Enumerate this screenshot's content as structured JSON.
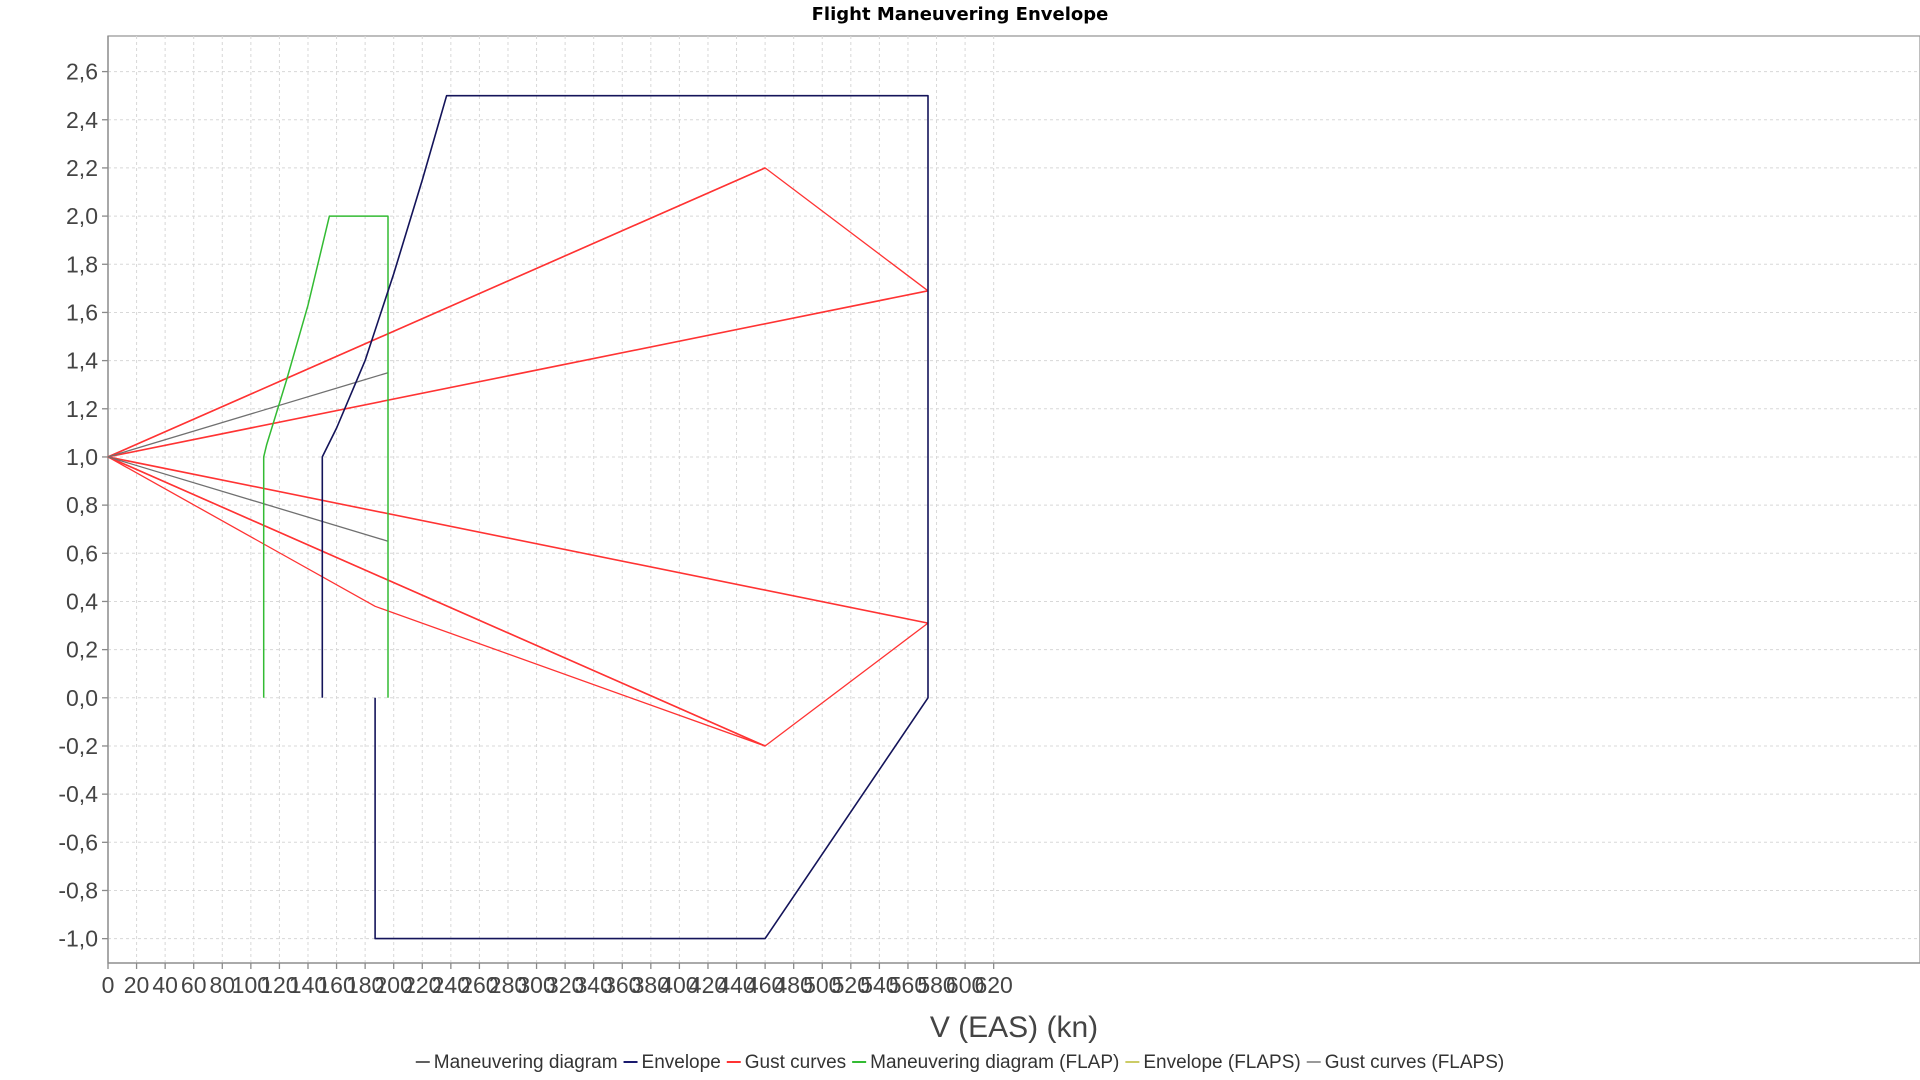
{
  "chart_data": {
    "type": "line",
    "title": "Flight Maneuvering Envelope",
    "xlabel": "V (EAS) (kn)",
    "ylabel": "",
    "xlim": [
      0,
      630
    ],
    "ylim": [
      -1.1,
      2.75
    ],
    "grid": true,
    "legend_position": "bottom",
    "x_ticks": [
      0,
      20,
      40,
      60,
      80,
      100,
      120,
      140,
      160,
      180,
      200,
      220,
      240,
      260,
      280,
      300,
      320,
      340,
      360,
      380,
      400,
      420,
      440,
      460,
      480,
      500,
      520,
      540,
      560,
      580,
      600,
      620
    ],
    "y_ticks": [
      -1.0,
      -0.8,
      -0.6,
      -0.4,
      -0.2,
      0.0,
      0.2,
      0.4,
      0.6,
      0.8,
      1.0,
      1.2,
      1.4,
      1.6,
      1.8,
      2.0,
      2.2,
      2.4,
      2.6
    ],
    "y_tick_labels": [
      "-1,0",
      "-0,8",
      "-0,6",
      "-0,4",
      "-0,2",
      "0,0",
      "0,2",
      "0,4",
      "0,6",
      "0,8",
      "1,0",
      "1,2",
      "1,4",
      "1,6",
      "1,8",
      "2,0",
      "2,2",
      "2,4",
      "2,6"
    ],
    "legend": [
      {
        "name": "Maneuvering diagram",
        "color": "#606060"
      },
      {
        "name": "Envelope",
        "color": "#1a1a6e"
      },
      {
        "name": "Gust curves",
        "color": "#ff3333"
      },
      {
        "name": "Maneuvering diagram (FLAP)",
        "color": "#33bb33"
      },
      {
        "name": "Envelope (FLAPS)",
        "color": "#cccc66"
      },
      {
        "name": "Gust curves (FLAPS)",
        "color": "#999999"
      }
    ],
    "series": [
      {
        "name": "Gust curves",
        "color": "#ff3333",
        "width": 1.3,
        "points": [
          [
            0,
            1.0
          ],
          [
            460,
            2.2
          ],
          [
            574,
            1.69
          ]
        ]
      },
      {
        "name": "Gust curves",
        "color": "#ff3333",
        "width": 1.6,
        "points": [
          [
            0,
            1.0
          ],
          [
            574,
            1.69
          ]
        ]
      },
      {
        "name": "Gust curves",
        "color": "#ff3333",
        "width": 1.3,
        "points": [
          [
            0,
            1.0
          ],
          [
            460,
            -0.2
          ],
          [
            574,
            0.31
          ]
        ]
      },
      {
        "name": "Gust curves",
        "color": "#ff3333",
        "width": 1.6,
        "points": [
          [
            0,
            1.0
          ],
          [
            574,
            0.31
          ]
        ]
      },
      {
        "name": "Gust curves",
        "color": "#ff3333",
        "width": 1.3,
        "points": [
          [
            0,
            1.0
          ],
          [
            187,
            0.38
          ],
          [
            460,
            -0.2
          ]
        ]
      },
      {
        "name": "Gust curves",
        "color": "#ff3333",
        "width": 1.6,
        "points": [
          [
            0,
            1.0
          ],
          [
            460,
            2.2
          ]
        ]
      },
      {
        "name": "Gust curves",
        "color": "#ff3333",
        "width": 1.6,
        "points": [
          [
            0,
            1.0
          ],
          [
            460,
            -0.2
          ]
        ]
      },
      {
        "name": "Gust curves (FLAPS)",
        "color": "#707070",
        "width": 1.3,
        "points": [
          [
            0,
            1.0
          ],
          [
            196,
            1.35
          ]
        ]
      },
      {
        "name": "Gust curves (FLAPS)",
        "color": "#707070",
        "width": 1.3,
        "points": [
          [
            0,
            1.0
          ],
          [
            196,
            0.65
          ]
        ]
      },
      {
        "name": "Maneuvering diagram (FLAP)",
        "color": "#33bb33",
        "width": 1.5,
        "points": [
          [
            109,
            0.0
          ],
          [
            109,
            1.0
          ],
          [
            111,
            1.05
          ],
          [
            125,
            1.32
          ],
          [
            140,
            1.63
          ],
          [
            155,
            2.0
          ],
          [
            196,
            2.0
          ],
          [
            196,
            0.0
          ]
        ]
      },
      {
        "name": "Envelope",
        "color": "#14145a",
        "width": 1.6,
        "points": [
          [
            150,
            0.0
          ],
          [
            150,
            1.0
          ],
          [
            160,
            1.12
          ],
          [
            180,
            1.4
          ],
          [
            200,
            1.76
          ],
          [
            220,
            2.15
          ],
          [
            237,
            2.5
          ],
          [
            574,
            2.5
          ],
          [
            574,
            0.0
          ],
          [
            460,
            -1.0
          ],
          [
            187,
            -1.0
          ],
          [
            187,
            0.0
          ]
        ]
      }
    ]
  }
}
